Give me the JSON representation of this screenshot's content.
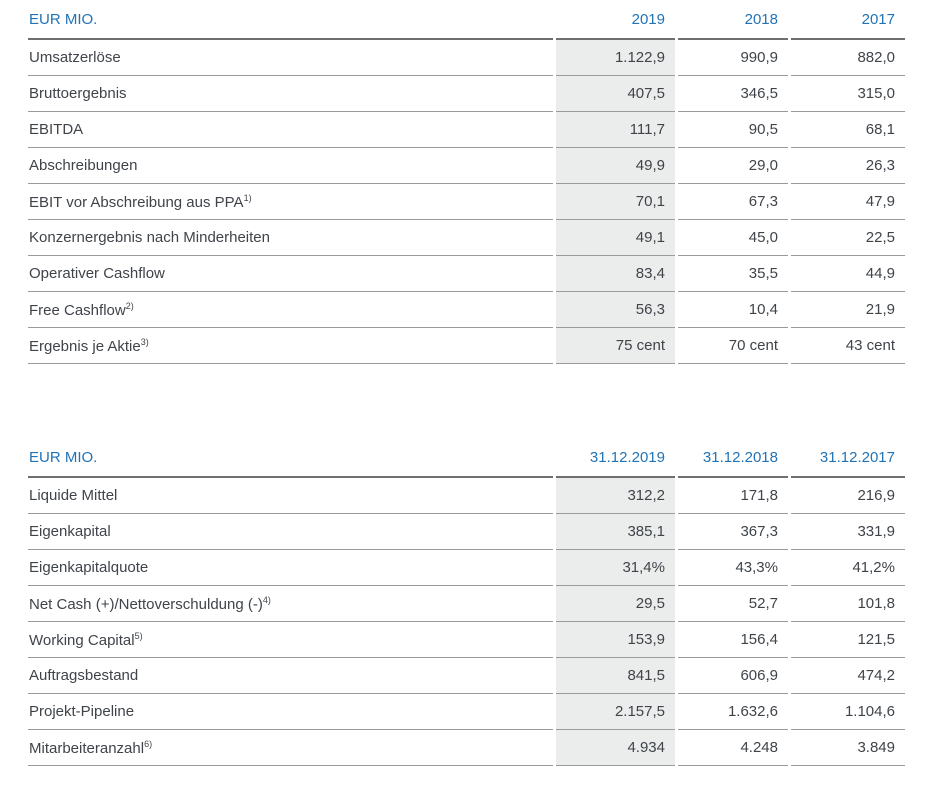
{
  "colors": {
    "accent": "#2273b5",
    "band": "#ebecec",
    "text": "#3f444a"
  },
  "tables": [
    {
      "unit_label": "EUR MIO.",
      "columns": [
        "2019",
        "2018",
        "2017"
      ],
      "rows": [
        {
          "label": "Umsatzerlöse",
          "values": [
            "1.122,9",
            "990,9",
            "882,0"
          ]
        },
        {
          "label": "Bruttoergebnis",
          "values": [
            "407,5",
            "346,5",
            "315,0"
          ]
        },
        {
          "label": "EBITDA",
          "values": [
            "111,7",
            "90,5",
            "68,1"
          ]
        },
        {
          "label": "Abschreibungen",
          "values": [
            "49,9",
            "29,0",
            "26,3"
          ]
        },
        {
          "label": "EBIT vor Abschreibung aus PPA",
          "sup": "1)",
          "values": [
            "70,1",
            "67,3",
            "47,9"
          ]
        },
        {
          "label": "Konzernergebnis nach Minderheiten",
          "values": [
            "49,1",
            "45,0",
            "22,5"
          ]
        },
        {
          "label": "Operativer Cashflow",
          "values": [
            "83,4",
            "35,5",
            "44,9"
          ]
        },
        {
          "label": "Free Cashflow",
          "sup": "2)",
          "values": [
            "56,3",
            "10,4",
            "21,9"
          ]
        },
        {
          "label": "Ergebnis je Aktie",
          "sup": "3)",
          "values": [
            "75 cent",
            "70 cent",
            "43 cent"
          ]
        }
      ]
    },
    {
      "unit_label": "EUR MIO.",
      "columns": [
        "31.12.2019",
        "31.12.2018",
        "31.12.2017"
      ],
      "rows": [
        {
          "label": "Liquide Mittel",
          "values": [
            "312,2",
            "171,8",
            "216,9"
          ]
        },
        {
          "label": "Eigenkapital",
          "values": [
            "385,1",
            "367,3",
            "331,9"
          ]
        },
        {
          "label": "Eigenkapitalquote",
          "values": [
            "31,4%",
            "43,3%",
            "41,2%"
          ]
        },
        {
          "label": "Net Cash (+)/Nettoverschuldung (-)",
          "sup": "4)",
          "values": [
            "29,5",
            "52,7",
            "101,8"
          ]
        },
        {
          "label": "Working Capital",
          "sup": "5)",
          "values": [
            "153,9",
            "156,4",
            "121,5"
          ]
        },
        {
          "label": "Auftragsbestand",
          "values": [
            "841,5",
            "606,9",
            "474,2"
          ]
        },
        {
          "label": "Projekt-Pipeline",
          "values": [
            "2.157,5",
            "1.632,6",
            "1.104,6"
          ]
        },
        {
          "label": "Mitarbeiteranzahl",
          "sup": "6)",
          "values": [
            "4.934",
            "4.248",
            "3.849"
          ]
        }
      ]
    }
  ]
}
